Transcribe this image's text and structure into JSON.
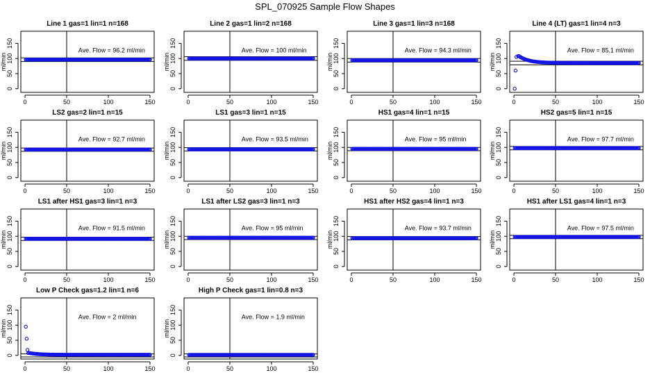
{
  "figure": {
    "title": "SPL_070925  Sample Flow Shapes"
  },
  "colors": {
    "points": "#1414e6",
    "lines": "#000000",
    "background": "#ffffff"
  },
  "chart_data": [
    {
      "type": "scatter",
      "title": "Line 1 gas=1 lin=1 n=168",
      "ylabel": "ml/min",
      "xlim": [
        0,
        150
      ],
      "ylim": [
        -12,
        190
      ],
      "x_ticks": [
        0,
        50,
        100,
        150
      ],
      "y_ticks": [
        0,
        50,
        100,
        150
      ],
      "annotation": "Ave. Flow =  96.2  ml/min",
      "hlines": [
        102,
        90
      ],
      "vline": 50,
      "shape": "flat",
      "level": 96.2
    },
    {
      "type": "scatter",
      "title": "Line 2 gas=1 lin=2 n=168",
      "ylabel": "ml/min",
      "xlim": [
        0,
        150
      ],
      "ylim": [
        -12,
        190
      ],
      "x_ticks": [
        0,
        50,
        100,
        150
      ],
      "y_ticks": [
        0,
        50,
        100,
        150
      ],
      "annotation": "Ave. Flow =  100  ml/min",
      "hlines": [
        106,
        94
      ],
      "vline": 50,
      "shape": "flat",
      "level": 100
    },
    {
      "type": "scatter",
      "title": "Line 3 gas=1 lin=3 n=168",
      "ylabel": "ml/min",
      "xlim": [
        0,
        150
      ],
      "ylim": [
        -12,
        190
      ],
      "x_ticks": [
        0,
        50,
        100,
        150
      ],
      "y_ticks": [
        0,
        50,
        100,
        150
      ],
      "annotation": "Ave. Flow =  94.3  ml/min",
      "hlines": [
        100,
        88
      ],
      "vline": 50,
      "shape": "flat",
      "level": 94.3
    },
    {
      "type": "scatter",
      "title": "Line 4 (LT) gas=1 lin=4 n=3",
      "ylabel": "ml/min",
      "xlim": [
        0,
        150
      ],
      "ylim": [
        -12,
        190
      ],
      "x_ticks": [
        0,
        50,
        100,
        150
      ],
      "y_ticks": [
        0,
        50,
        100,
        150
      ],
      "annotation": "Ave. Flow =  85.1  ml/min",
      "hlines": [
        91,
        79
      ],
      "vline": 50,
      "shape": "decay",
      "level": 85.1,
      "startup_points": [
        [
          1,
          0
        ],
        [
          2,
          60
        ],
        [
          3,
          105
        ],
        [
          5,
          108
        ]
      ]
    },
    {
      "type": "scatter",
      "title": "LS2 gas=2 lin=1 n=15",
      "ylabel": "ml/min",
      "xlim": [
        0,
        150
      ],
      "ylim": [
        -12,
        190
      ],
      "x_ticks": [
        0,
        50,
        100,
        150
      ],
      "y_ticks": [
        0,
        50,
        100,
        150
      ],
      "annotation": "Ave. Flow =  92.7  ml/min",
      "hlines": [
        98,
        87
      ],
      "vline": 50,
      "shape": "flat",
      "level": 92.7
    },
    {
      "type": "scatter",
      "title": "LS1 gas=3 lin=1 n=15",
      "ylabel": "ml/min",
      "xlim": [
        0,
        150
      ],
      "ylim": [
        -12,
        190
      ],
      "x_ticks": [
        0,
        50,
        100,
        150
      ],
      "y_ticks": [
        0,
        50,
        100,
        150
      ],
      "annotation": "Ave. Flow =  93.5  ml/min",
      "hlines": [
        99,
        88
      ],
      "vline": 50,
      "shape": "flat",
      "level": 93.5
    },
    {
      "type": "scatter",
      "title": "HS1 gas=4 lin=1 n=15",
      "ylabel": "ml/min",
      "xlim": [
        0,
        150
      ],
      "ylim": [
        -12,
        190
      ],
      "x_ticks": [
        0,
        50,
        100,
        150
      ],
      "y_ticks": [
        0,
        50,
        100,
        150
      ],
      "annotation": "Ave. Flow =  95  ml/min",
      "hlines": [
        100,
        89
      ],
      "vline": 50,
      "shape": "flat",
      "level": 95
    },
    {
      "type": "scatter",
      "title": "HS2 gas=5 lin=1 n=15",
      "ylabel": "ml/min",
      "xlim": [
        0,
        150
      ],
      "ylim": [
        -12,
        190
      ],
      "x_ticks": [
        0,
        50,
        100,
        150
      ],
      "y_ticks": [
        0,
        50,
        100,
        150
      ],
      "annotation": "Ave. Flow =  97.7  ml/min",
      "hlines": [
        103,
        92
      ],
      "vline": 50,
      "shape": "flat",
      "level": 97.7
    },
    {
      "type": "scatter",
      "title": "LS1 after HS1 gas=3 lin=1 n=3",
      "ylabel": "ml/min",
      "xlim": [
        0,
        150
      ],
      "ylim": [
        -12,
        190
      ],
      "x_ticks": [
        0,
        50,
        100,
        150
      ],
      "y_ticks": [
        0,
        50,
        100,
        150
      ],
      "annotation": "Ave. Flow =  91.5  ml/min",
      "hlines": [
        97,
        86
      ],
      "vline": 50,
      "shape": "flat",
      "level": 91.5
    },
    {
      "type": "scatter",
      "title": "LS1 after LS2 gas=3 lin=1 n=3",
      "ylabel": "ml/min",
      "xlim": [
        0,
        150
      ],
      "ylim": [
        -12,
        190
      ],
      "x_ticks": [
        0,
        50,
        100,
        150
      ],
      "y_ticks": [
        0,
        50,
        100,
        150
      ],
      "annotation": "Ave. Flow =  95  ml/min",
      "hlines": [
        100,
        89
      ],
      "vline": 50,
      "shape": "flat",
      "level": 95
    },
    {
      "type": "scatter",
      "title": "HS1 after HS2 gas=4 lin=1 n=3",
      "ylabel": "ml/min",
      "xlim": [
        0,
        150
      ],
      "ylim": [
        -12,
        190
      ],
      "x_ticks": [
        0,
        50,
        100,
        150
      ],
      "y_ticks": [
        0,
        50,
        100,
        150
      ],
      "annotation": "Ave. Flow =  93.7  ml/min",
      "hlines": [
        99,
        88
      ],
      "vline": 50,
      "shape": "flat",
      "level": 93.7
    },
    {
      "type": "scatter",
      "title": "HS1 after LS1 gas=4 lin=1 n=3",
      "ylabel": "ml/min",
      "xlim": [
        0,
        150
      ],
      "ylim": [
        -12,
        190
      ],
      "x_ticks": [
        0,
        50,
        100,
        150
      ],
      "y_ticks": [
        0,
        50,
        100,
        150
      ],
      "annotation": "Ave. Flow =  97.5  ml/min",
      "hlines": [
        103,
        92
      ],
      "vline": 50,
      "shape": "flat",
      "level": 97.5
    },
    {
      "type": "scatter",
      "title": "Low P Check gas=1.2 lin=1 n=6",
      "ylabel": "ml/min",
      "xlim": [
        0,
        150
      ],
      "ylim": [
        -12,
        190
      ],
      "x_ticks": [
        0,
        50,
        100,
        150
      ],
      "y_ticks": [
        0,
        50,
        100,
        150
      ],
      "annotation": "Ave. Flow =  2  ml/min",
      "hlines": [
        5,
        -5
      ],
      "vline": 50,
      "shape": "decay",
      "level": 2,
      "startup_points": [
        [
          1,
          95
        ],
        [
          2,
          55
        ],
        [
          3,
          18
        ],
        [
          4,
          8
        ]
      ]
    },
    {
      "type": "scatter",
      "title": "High P Check gas=1 lin=0.8 n=3",
      "ylabel": "ml/min",
      "xlim": [
        0,
        150
      ],
      "ylim": [
        -12,
        190
      ],
      "x_ticks": [
        0,
        50,
        100,
        150
      ],
      "y_ticks": [
        0,
        50,
        100,
        150
      ],
      "annotation": "Ave. Flow =  1.9  ml/min",
      "hlines": [
        5,
        -5
      ],
      "vline": 50,
      "shape": "flat",
      "level": 1.9
    }
  ]
}
